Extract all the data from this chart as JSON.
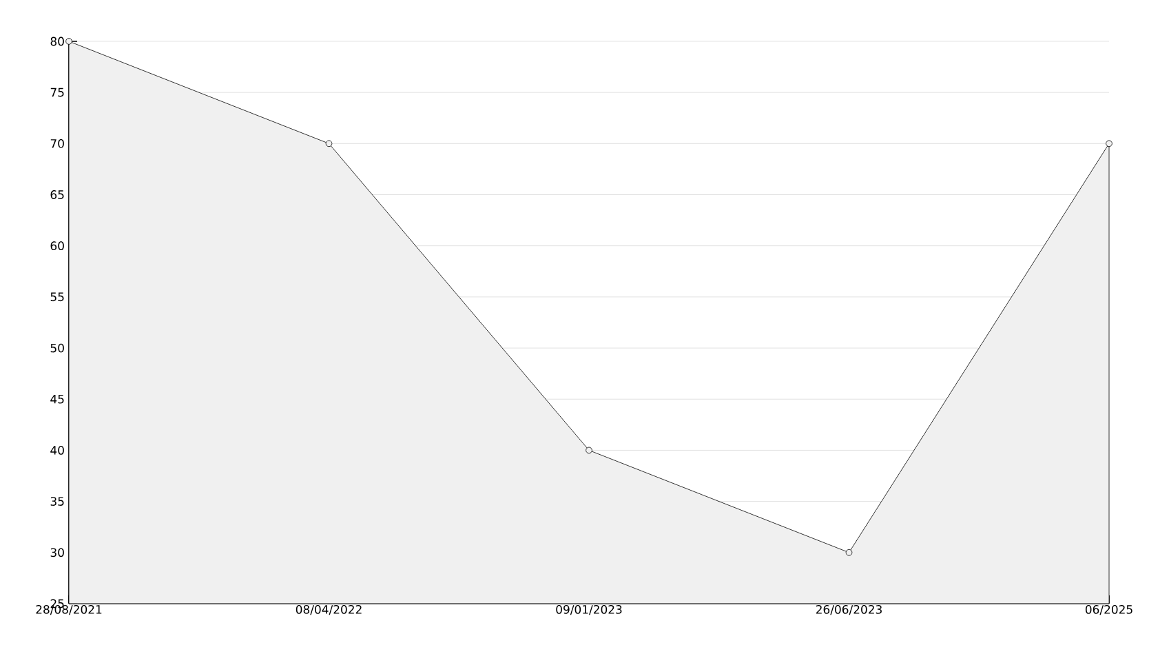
{
  "chart_data": {
    "type": "area",
    "categories": [
      "28/08/2021",
      "08/04/2022",
      "09/01/2023",
      "26/06/2023",
      "06/2025"
    ],
    "series": [
      {
        "color": "#000000",
        "values": [
          80,
          70,
          40,
          30,
          70
        ]
      }
    ],
    "ylim": [
      25,
      80
    ],
    "yticks": [
      25,
      30,
      35,
      40,
      45,
      50,
      55,
      60,
      65,
      70,
      75,
      80
    ],
    "grid": "y",
    "marker": "circle",
    "line_style": "solid"
  }
}
